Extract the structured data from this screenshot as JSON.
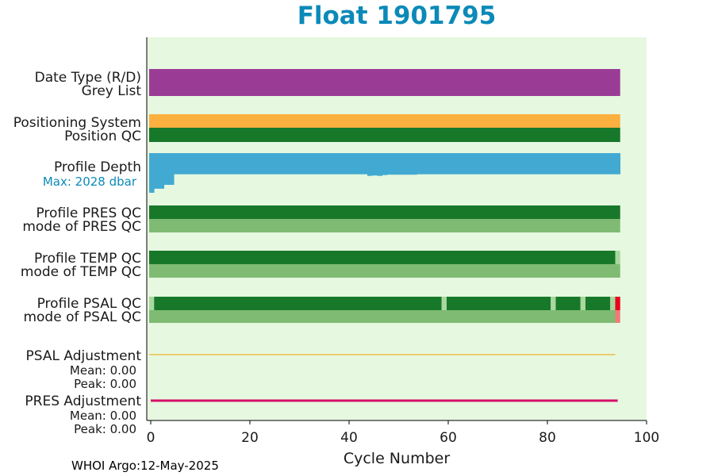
{
  "chart_data": {
    "type": "bar",
    "title": "Float 1901795",
    "xlabel": "Cycle Number",
    "xlim": [
      0,
      100
    ],
    "xticks": [
      0,
      20,
      40,
      60,
      80,
      100
    ],
    "n_cycles": 95,
    "background_color": "#e6f8e0",
    "rows": [
      {
        "label": "Date Type (R/D)",
        "color": "#9a3c96",
        "segments": [
          {
            "from": 0,
            "to": 95,
            "color": "#9a3c96"
          }
        ]
      },
      {
        "label": "Grey List",
        "color": "#9a3c96",
        "segments": [
          {
            "from": 0,
            "to": 95,
            "color": "#9a3c96"
          }
        ]
      },
      {
        "label": "Positioning System",
        "color": "#fbb040",
        "segments": [
          {
            "from": 0,
            "to": 95,
            "color": "#fbb040"
          }
        ]
      },
      {
        "label": "Position QC",
        "color": "#18782a",
        "segments": [
          {
            "from": 0,
            "to": 95,
            "color": "#18782a"
          }
        ]
      },
      {
        "label": "Profile PRES QC",
        "color": "#18782a",
        "segments": [
          {
            "from": 0,
            "to": 95,
            "color": "#18782a"
          }
        ]
      },
      {
        "label": "mode of PRES QC",
        "color": "#7fbb72",
        "segments": [
          {
            "from": 0,
            "to": 95,
            "color": "#7fbb72"
          }
        ]
      },
      {
        "label": "Profile TEMP QC",
        "color": "#18782a",
        "segments": [
          {
            "from": 0,
            "to": 94,
            "color": "#18782a"
          },
          {
            "from": 94,
            "to": 95,
            "color": "#a9d79d"
          }
        ]
      },
      {
        "label": "mode of TEMP QC",
        "color": "#7fbb72",
        "segments": [
          {
            "from": 0,
            "to": 95,
            "color": "#7fbb72"
          }
        ]
      },
      {
        "label": "Profile PSAL QC",
        "color": "#18782a",
        "segments": [
          {
            "from": 0,
            "to": 1,
            "color": "#a9d79d"
          },
          {
            "from": 1,
            "to": 59,
            "color": "#18782a"
          },
          {
            "from": 59,
            "to": 60,
            "color": "#a9d79d"
          },
          {
            "from": 60,
            "to": 81,
            "color": "#18782a"
          },
          {
            "from": 81,
            "to": 82,
            "color": "#a9d79d"
          },
          {
            "from": 82,
            "to": 87,
            "color": "#18782a"
          },
          {
            "from": 87,
            "to": 88,
            "color": "#a9d79d"
          },
          {
            "from": 88,
            "to": 93,
            "color": "#18782a"
          },
          {
            "from": 93,
            "to": 94,
            "color": "#a9d79d"
          },
          {
            "from": 94,
            "to": 95,
            "color": "#e8001c"
          }
        ]
      },
      {
        "label": "mode of PSAL QC",
        "color": "#7fbb72",
        "segments": [
          {
            "from": 0,
            "to": 94,
            "color": "#7fbb72"
          },
          {
            "from": 94,
            "to": 95,
            "color": "#f07a7a"
          }
        ]
      }
    ],
    "profile_depth": {
      "label": "Profile Depth",
      "max_label": "Max: 2028 dbar",
      "color": "#42aad2",
      "max_dbar": 2028,
      "depths_dbar": [
        1950,
        1750,
        1750,
        1560,
        1560,
        1040,
        1040,
        1040,
        1040,
        1040,
        1040,
        1040,
        1040,
        1040,
        1040,
        1040,
        1040,
        1040,
        1040,
        1040,
        1040,
        1040,
        1040,
        1040,
        1040,
        1040,
        1040,
        1040,
        1040,
        1040,
        1040,
        1040,
        1040,
        1040,
        1040,
        1040,
        1040,
        1040,
        1040,
        1040,
        1040,
        1040,
        1040,
        1040,
        1120,
        1100,
        1120,
        1080,
        1060,
        1060,
        1060,
        1060,
        1060,
        1060,
        1040,
        1040,
        1040,
        1040,
        1040,
        1040,
        1040,
        1040,
        1040,
        1040,
        1040,
        1040,
        1040,
        1040,
        1040,
        1040,
        1040,
        1040,
        1040,
        1040,
        1040,
        1040,
        1040,
        1040,
        1040,
        1040,
        1040,
        1040,
        1040,
        1040,
        1040,
        1040,
        1040,
        1040,
        1040,
        1040,
        1040,
        1040,
        1040,
        1040,
        1040
      ]
    },
    "psal_adjustment": {
      "label": "PSAL Adjustment",
      "mean": "Mean: 0.00",
      "peak": "Peak: 0.00",
      "color": "#f0a500",
      "from": 0,
      "to": 94
    },
    "pres_adjustment": {
      "label": "PRES Adjustment",
      "mean": "Mean: 0.00",
      "peak": "Peak: 0.00",
      "color": "#d6106a",
      "from": 0,
      "to": 94.5
    }
  },
  "footer": {
    "credit": "WHOI Argo:12-May-2025"
  }
}
